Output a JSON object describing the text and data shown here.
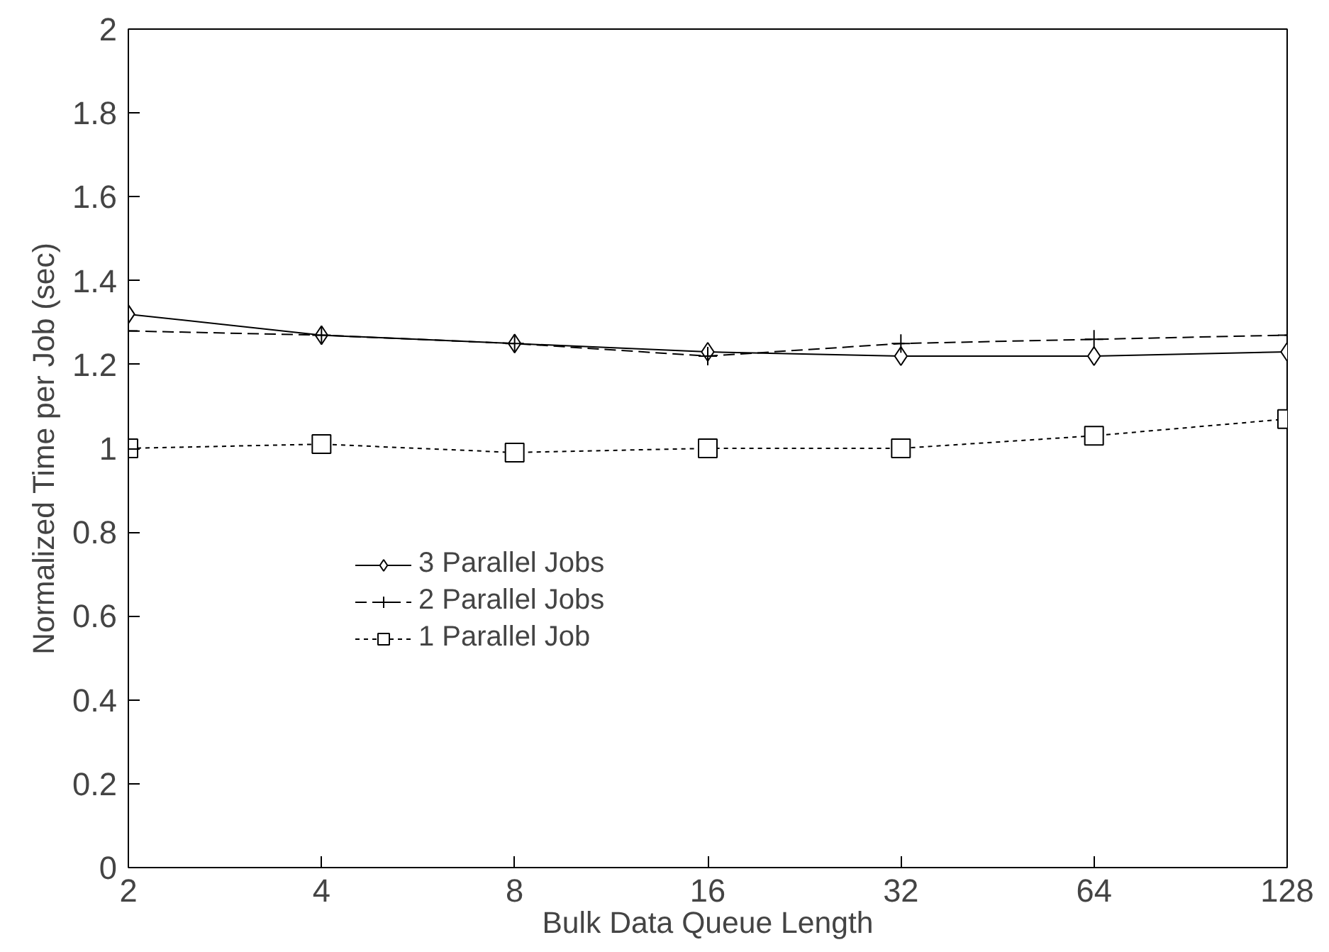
{
  "chart_data": {
    "type": "line",
    "xlabel": "Bulk Data Queue Length",
    "ylabel": "Normalized Time per Job (sec)",
    "x": [
      2,
      4,
      8,
      16,
      32,
      64,
      128
    ],
    "series": [
      {
        "name": "3 Parallel Jobs",
        "color": "#000000",
        "marker": "diamond",
        "line_style": "solid",
        "values": [
          1.32,
          1.27,
          1.25,
          1.23,
          1.22,
          1.22,
          1.23
        ]
      },
      {
        "name": "2 Parallel Jobs",
        "color": "#000000",
        "marker": "cross",
        "line_style": "dashed",
        "values": [
          1.28,
          1.27,
          1.25,
          1.22,
          1.25,
          1.26,
          1.27
        ]
      },
      {
        "name": "1 Parallel Job",
        "color": "#000000",
        "marker": "square",
        "line_style": "dotted",
        "values": [
          1.0,
          1.01,
          0.99,
          1.0,
          1.0,
          1.03,
          1.07
        ]
      }
    ],
    "log": "x",
    "xlim": [
      2,
      128
    ],
    "xticks": [
      2,
      4,
      8,
      16,
      32,
      64,
      128
    ],
    "ylim": [
      0,
      2
    ],
    "yticks": [
      0,
      0.2,
      0.4,
      0.6,
      0.8,
      1,
      1.2,
      1.4,
      1.6,
      1.8,
      2
    ],
    "grid": false,
    "legend": "center"
  }
}
